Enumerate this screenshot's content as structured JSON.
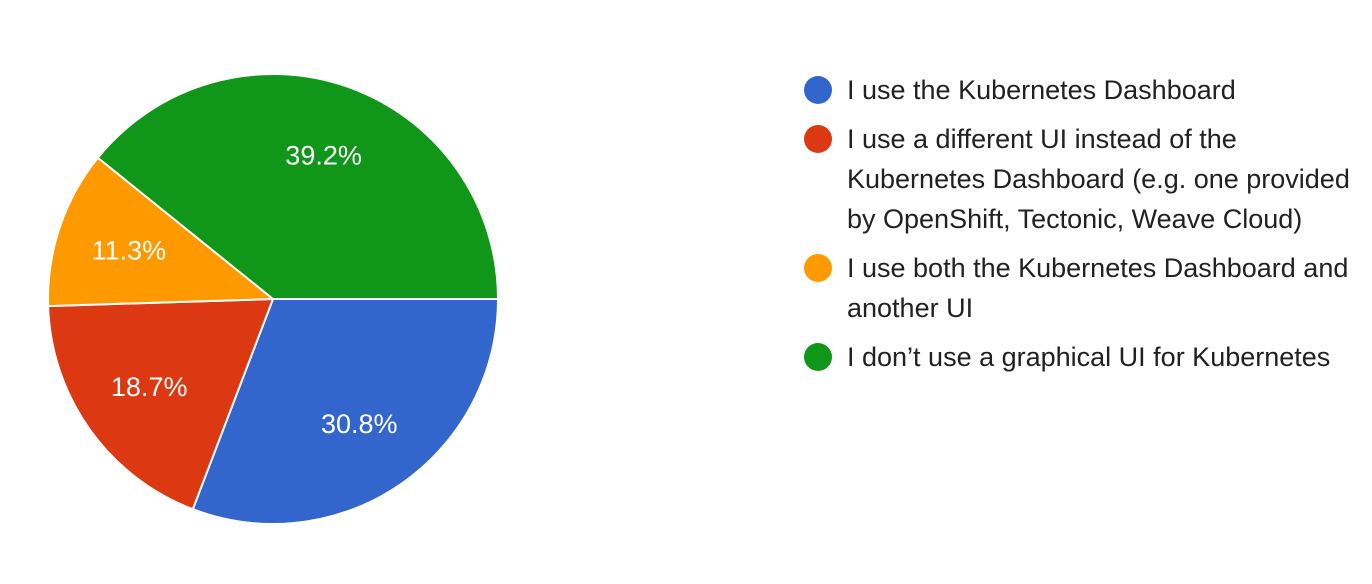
{
  "chart_data": {
    "type": "pie",
    "slices": [
      {
        "label": "I use the Kubernetes Dashboard",
        "value": 30.8,
        "display": "30.8%",
        "color": "#3366CC"
      },
      {
        "label": "I use a different UI instead of the Kubernetes Dashboard (e.g. one provided by OpenShift, Tectonic, Weave Cloud)",
        "value": 18.7,
        "display": "18.7%",
        "color": "#DC3912"
      },
      {
        "label": "I use both the Kubernetes Dashboard and another UI",
        "value": 11.3,
        "display": "11.3%",
        "color": "#FF9900"
      },
      {
        "label": "I don’t use a graphical UI for Kubernetes",
        "value": 39.2,
        "display": "39.2%",
        "color": "#109618"
      }
    ],
    "start_angle_deg": 90,
    "direction": "clockwise",
    "legend_position": "right"
  }
}
